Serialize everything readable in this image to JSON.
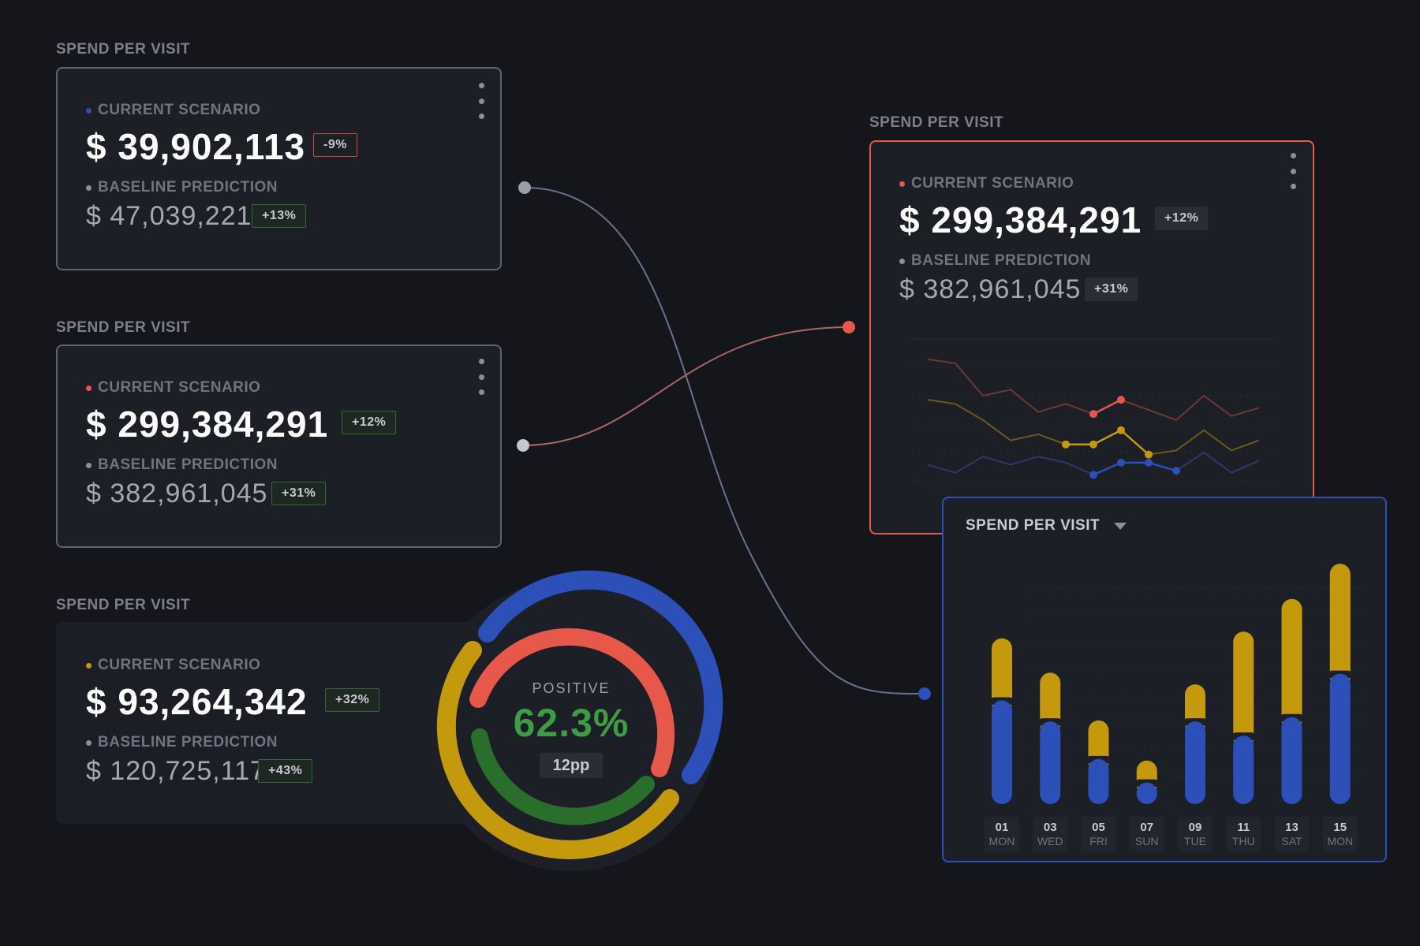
{
  "cards": [
    {
      "section": "SPEND PER VISIT",
      "current_label": "CURRENT SCENARIO",
      "current_value": "$ 39,902,113",
      "current_badge": "-9%",
      "baseline_label": "BASELINE PREDICTION",
      "baseline_value": "$ 47,039,221",
      "baseline_badge": "+13%"
    },
    {
      "section": "SPEND PER VISIT",
      "current_label": "CURRENT SCENARIO",
      "current_value": "$ 299,384,291",
      "current_badge": "+12%",
      "baseline_label": "BASELINE PREDICTION",
      "baseline_value": "$ 382,961,045",
      "baseline_badge": "+31%"
    },
    {
      "section": "SPEND PER VISIT",
      "current_label": "CURRENT SCENARIO",
      "current_value": "$ 93,264,342",
      "current_badge": "+32%",
      "baseline_label": "BASELINE PREDICTION",
      "baseline_value": "$ 120,725,117",
      "baseline_badge": "+43%"
    }
  ],
  "detail_card": {
    "section": "SPEND PER VISIT",
    "current_label": "CURRENT SCENARIO",
    "current_value": "$ 299,384,291",
    "current_badge": "+12%",
    "baseline_label": "BASELINE PREDICTION",
    "baseline_value": "$ 382,961,045",
    "baseline_badge": "+31%"
  },
  "gauge": {
    "label": "POSITIVE",
    "value": "62.3%",
    "delta": "12pp"
  },
  "bar_card": {
    "title": "SPEND PER VISIT",
    "icon": "caret-down-icon"
  },
  "colors": {
    "blue": "#2d4fb8",
    "red": "#e5584a",
    "yellow": "#c49a0c",
    "green": "#2a6e2c",
    "gray": "#8a8f9b"
  },
  "chart_data": [
    {
      "type": "line",
      "x": [
        1,
        2,
        3,
        4,
        5,
        6,
        7,
        8,
        9,
        10,
        11,
        12,
        13
      ],
      "series": [
        {
          "values": [
            60,
            58,
            42,
            45,
            34,
            38,
            33,
            40,
            35,
            30,
            42,
            32,
            36
          ]
        },
        {
          "values": [
            40,
            38,
            30,
            20,
            23,
            18,
            18,
            25,
            13,
            15,
            25,
            15,
            20
          ]
        },
        {
          "values": [
            8,
            4,
            12,
            8,
            12,
            9,
            3,
            9,
            9,
            5,
            14,
            4,
            10
          ]
        }
      ],
      "ylim": [
        0,
        70
      ],
      "highlighted_points": {
        "red": [
          6,
          7
        ],
        "yellow": [
          5,
          6,
          7,
          8
        ],
        "blue": [
          6,
          7,
          8,
          9
        ]
      },
      "grid": true
    },
    {
      "type": "bar",
      "stacked": true,
      "categories": [
        {
          "day": "01",
          "weekday": "MON"
        },
        {
          "day": "03",
          "weekday": "WED"
        },
        {
          "day": "05",
          "weekday": "FRI"
        },
        {
          "day": "07",
          "weekday": "SUN"
        },
        {
          "day": "09",
          "weekday": "TUE"
        },
        {
          "day": "11",
          "weekday": "THU"
        },
        {
          "day": "13",
          "weekday": "SAT"
        },
        {
          "day": "15",
          "weekday": "MON"
        }
      ],
      "series": [
        {
          "values": [
            120,
            95,
            50,
            22,
            95,
            78,
            100,
            152
          ]
        },
        {
          "values": [
            78,
            62,
            50,
            30,
            48,
            128,
            145,
            135
          ]
        }
      ],
      "ylim": [
        0,
        290
      ],
      "grid": true
    }
  ]
}
